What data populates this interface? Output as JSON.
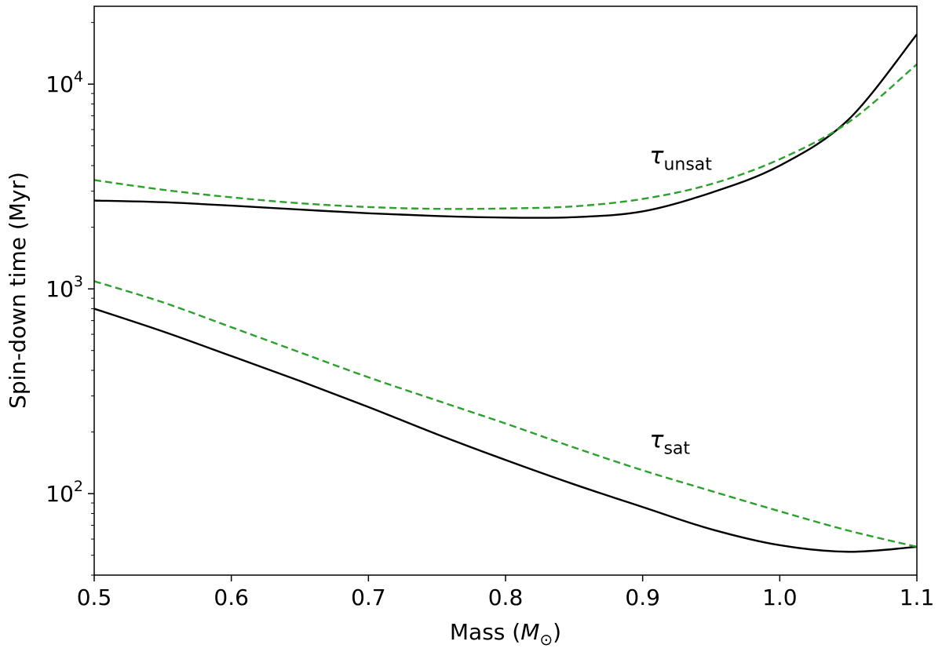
{
  "chart_data": {
    "type": "line",
    "title": "",
    "xlabel_main": "Mass (",
    "xlabel_symbol": "M",
    "xlabel_subscript": "⊙",
    "xlabel_close": ")",
    "ylabel": "Spin-down time (Myr)",
    "xlim": [
      0.5,
      1.1
    ],
    "ylim": [
      40,
      24000
    ],
    "yscale": "log",
    "xticks": [
      0.5,
      0.6,
      0.7,
      0.8,
      0.9,
      1.0,
      1.1
    ],
    "xtick_labels": [
      "0.5",
      "0.6",
      "0.7",
      "0.8",
      "0.9",
      "1.0",
      "1.1"
    ],
    "yticks": [
      {
        "value": 100,
        "base": "10",
        "exp": "2"
      },
      {
        "value": 1000,
        "base": "10",
        "exp": "3"
      },
      {
        "value": 10000,
        "base": "10",
        "exp": "4"
      }
    ],
    "series": [
      {
        "name": "tau_unsat_solid",
        "style": "solid",
        "color": "#000000",
        "x": [
          0.5,
          0.55,
          0.6,
          0.65,
          0.7,
          0.75,
          0.8,
          0.85,
          0.9,
          0.95,
          1.0,
          1.05,
          1.1
        ],
        "values": [
          2700,
          2650,
          2550,
          2440,
          2340,
          2270,
          2230,
          2240,
          2390,
          2950,
          4000,
          6700,
          17500
        ]
      },
      {
        "name": "tau_unsat_dashed",
        "style": "dashed",
        "color": "#2ca02c",
        "x": [
          0.5,
          0.55,
          0.6,
          0.65,
          0.7,
          0.75,
          0.8,
          0.85,
          0.9,
          0.95,
          1.0,
          1.05,
          1.1
        ],
        "values": [
          3400,
          3050,
          2800,
          2620,
          2510,
          2460,
          2470,
          2530,
          2750,
          3250,
          4300,
          6500,
          12500
        ]
      },
      {
        "name": "tau_sat_solid",
        "style": "solid",
        "color": "#000000",
        "x": [
          0.5,
          0.55,
          0.6,
          0.65,
          0.7,
          0.75,
          0.8,
          0.85,
          0.9,
          0.95,
          1.0,
          1.05,
          1.1
        ],
        "values": [
          800,
          620,
          470,
          355,
          265,
          195,
          146,
          111,
          86,
          67,
          56,
          52,
          55
        ]
      },
      {
        "name": "tau_sat_dashed",
        "style": "dashed",
        "color": "#2ca02c",
        "x": [
          0.5,
          0.55,
          0.6,
          0.65,
          0.7,
          0.75,
          0.8,
          0.85,
          0.9,
          0.95,
          1.0,
          1.05,
          1.1
        ],
        "values": [
          1090,
          860,
          650,
          490,
          370,
          285,
          220,
          168,
          130,
          103,
          82,
          66,
          55
        ]
      }
    ],
    "annotations": [
      {
        "name": "tau-unsat-label",
        "symbol": "τ",
        "subscript": "unsat",
        "x": 0.905,
        "y": 4100
      },
      {
        "name": "tau-sat-label",
        "symbol": "τ",
        "subscript": "sat",
        "x": 0.905,
        "y": 168
      }
    ]
  }
}
